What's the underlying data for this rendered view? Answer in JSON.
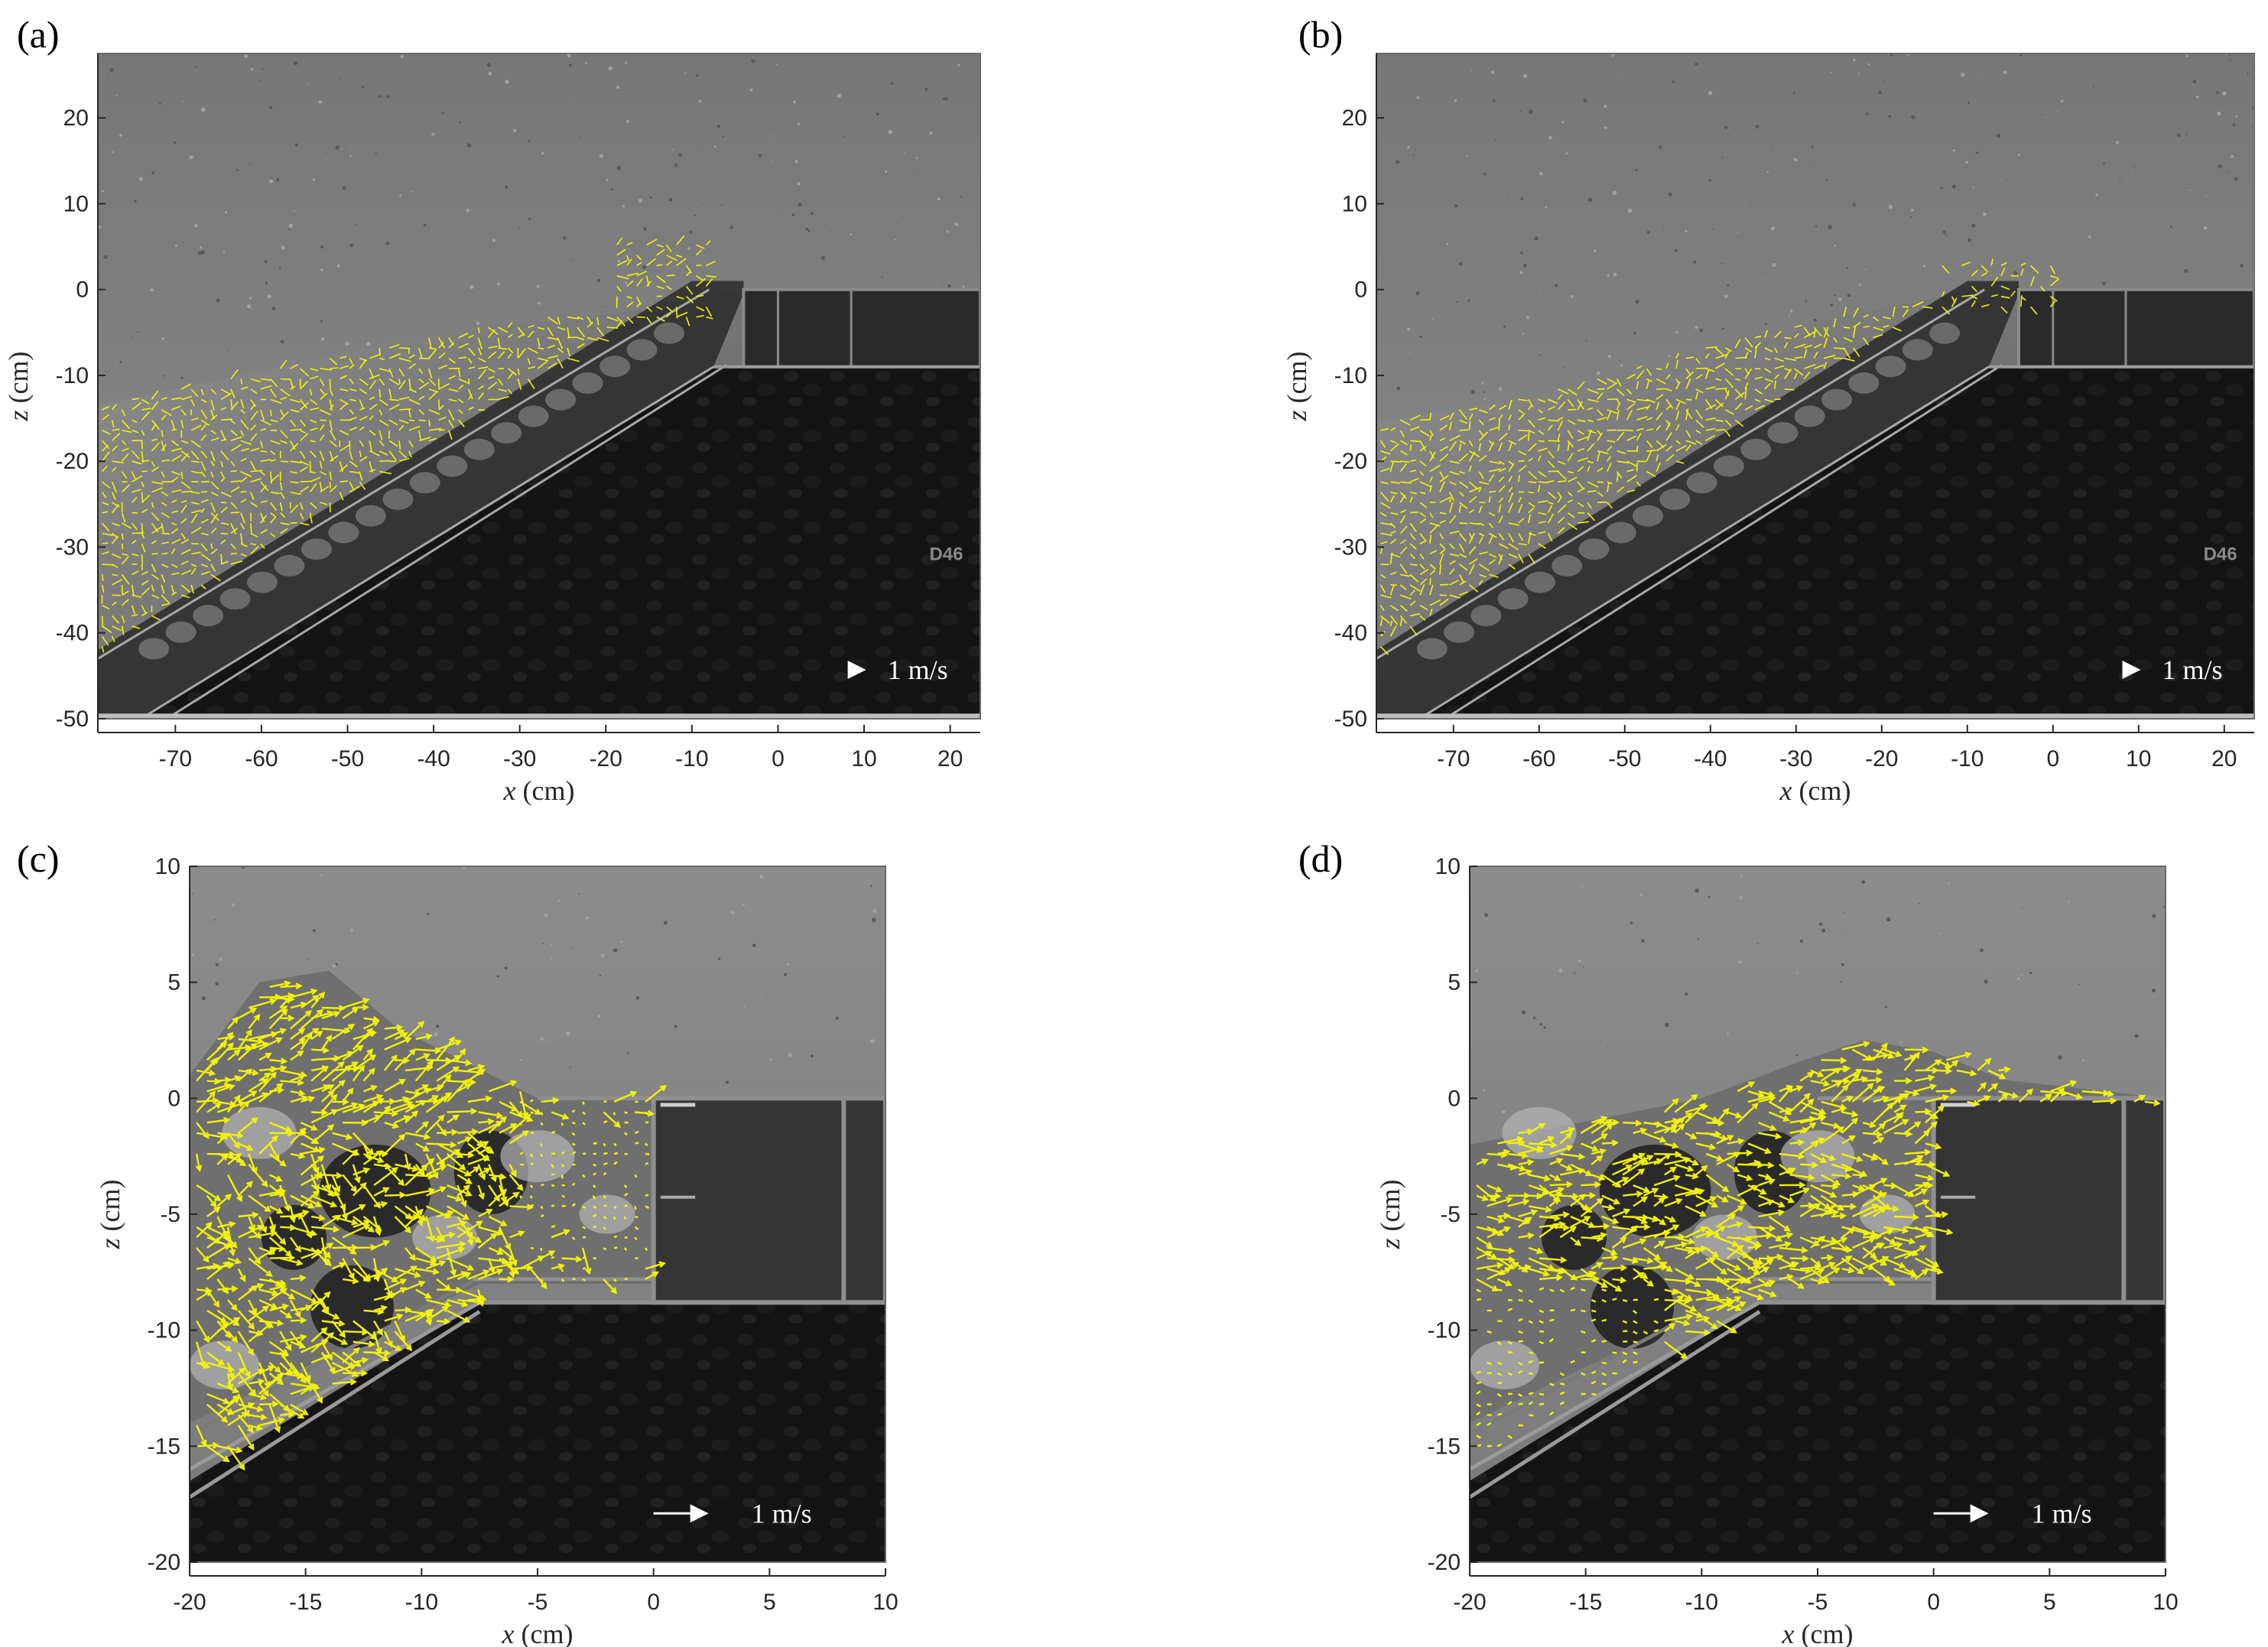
{
  "figure": {
    "panels": [
      {
        "id": "a",
        "letter": "(a)",
        "xlabel": {
          "var": "x",
          "unit": " (cm)"
        },
        "ylabel": {
          "var": "z",
          "unit": " (cm)"
        },
        "xticks": [
          -70,
          -60,
          -50,
          -40,
          -30,
          -20,
          -10,
          0,
          10,
          20
        ],
        "yticks": [
          20,
          10,
          0,
          -10,
          -20,
          -30,
          -40,
          -50
        ],
        "xlim": [
          -79,
          23.5
        ],
        "ylim": [
          -50,
          27.5
        ],
        "scale_label": "1 m/s",
        "marker_text": "D46",
        "view": "wide"
      },
      {
        "id": "b",
        "letter": "(b)",
        "xlabel": {
          "var": "x",
          "unit": " (cm)"
        },
        "ylabel": {
          "var": "z",
          "unit": " (cm)"
        },
        "xticks": [
          -70,
          -60,
          -50,
          -40,
          -30,
          -20,
          -10,
          0,
          10,
          20
        ],
        "yticks": [
          20,
          10,
          0,
          -10,
          -20,
          -30,
          -40,
          -50
        ],
        "xlim": [
          -79,
          23.5
        ],
        "ylim": [
          -50,
          27.5
        ],
        "scale_label": "1 m/s",
        "marker_text": "D46",
        "view": "wide"
      },
      {
        "id": "c",
        "letter": "(c)",
        "xlabel": {
          "var": "x",
          "unit": " (cm)"
        },
        "ylabel": {
          "var": "z",
          "unit": " (cm)"
        },
        "xticks": [
          -20,
          -15,
          -10,
          -5,
          0,
          5,
          10
        ],
        "yticks": [
          10,
          5,
          0,
          -5,
          -10,
          -15,
          -20
        ],
        "xlim": [
          -20,
          10
        ],
        "ylim": [
          -20,
          10
        ],
        "scale_label": "1 m/s",
        "view": "zoom"
      },
      {
        "id": "d",
        "letter": "(d)",
        "xlabel": {
          "var": "x",
          "unit": " (cm)"
        },
        "ylabel": {
          "var": "z",
          "unit": " (cm)"
        },
        "xticks": [
          -20,
          -15,
          -10,
          -5,
          0,
          5,
          10
        ],
        "yticks": [
          10,
          5,
          0,
          -5,
          -10,
          -15,
          -20
        ],
        "xlim": [
          -20,
          10
        ],
        "ylim": [
          -20,
          10
        ],
        "scale_label": "1 m/s",
        "view": "zoom"
      }
    ],
    "colors": {
      "vector": "#f2f20a",
      "water": "#7a7a7a",
      "air": "#8e8e8e",
      "structure": "#151515",
      "axis": "#262626"
    }
  }
}
